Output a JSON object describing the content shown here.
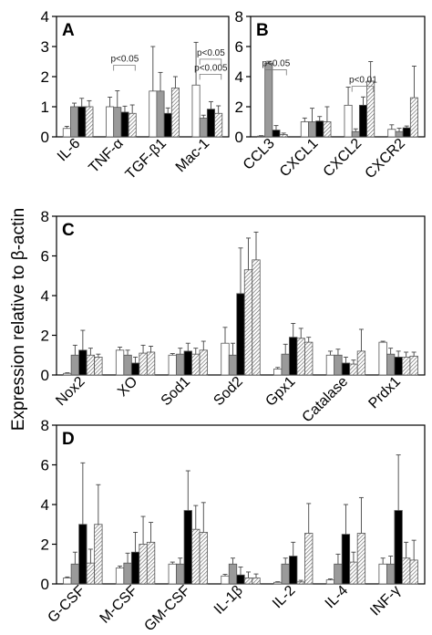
{
  "figure": {
    "ylabel": "Expression relative to β-actin"
  },
  "group_fills": [
    "#ffffff",
    "#9a9a9a",
    "#000000",
    "hatch"
  ],
  "chart_data": [
    {
      "id": "A",
      "type": "bar",
      "panel_label": "A",
      "ylim": [
        0,
        4
      ],
      "yticks": [
        0,
        1,
        2,
        3,
        4
      ],
      "categories": [
        "IL-6",
        "TNF-α",
        "TGF-β1",
        "Mac-1"
      ],
      "groups": [
        {
          "values": [
            0.28,
            1.0,
            1.52,
            1.72
          ],
          "errors": [
            0.07,
            0.32,
            1.48,
            1.42
          ]
        },
        {
          "values": [
            1.0,
            0.98,
            1.52,
            0.62
          ],
          "errors": [
            0.12,
            0.55,
            0.62,
            0.1
          ]
        },
        {
          "values": [
            1.0,
            0.82,
            0.78,
            0.92
          ],
          "errors": [
            0.28,
            0.2,
            0.18,
            0.25
          ]
        },
        {
          "values": [
            1.0,
            0.78,
            1.62,
            0.78
          ],
          "errors": [
            0.2,
            0.28,
            0.38,
            0.25
          ]
        }
      ],
      "annotations": [
        {
          "text": "p<0.05",
          "category": 1,
          "value": 2.5
        },
        {
          "text": "p<0.05",
          "category": 3,
          "value": 2.7
        },
        {
          "text": "p<0.005",
          "category": 3,
          "value": 2.2
        }
      ]
    },
    {
      "id": "B",
      "type": "bar",
      "panel_label": "B",
      "ylim": [
        0,
        8
      ],
      "yticks": [
        0,
        2,
        4,
        6,
        8
      ],
      "categories": [
        "CCL3",
        "CXCL1",
        "CXCL2",
        "CXCR2"
      ],
      "groups": [
        {
          "values": [
            0.05,
            1.0,
            2.1,
            0.5
          ],
          "errors": [
            0.03,
            0.25,
            1.2,
            0.3
          ]
        },
        {
          "values": [
            4.9,
            1.0,
            0.35,
            0.35
          ],
          "errors": [
            0.12,
            0.9,
            0.18,
            0.22
          ]
        },
        {
          "values": [
            0.45,
            1.05,
            2.1,
            0.6
          ],
          "errors": [
            0.3,
            0.3,
            0.55,
            0.12
          ]
        },
        {
          "values": [
            0.15,
            1.0,
            3.7,
            2.6
          ],
          "errors": [
            0.1,
            1.0,
            1.3,
            2.1
          ]
        }
      ],
      "annotations": [
        {
          "text": "p<0.05",
          "category": 0,
          "value": 4.7
        },
        {
          "text": "p<0.01",
          "category": 2,
          "value": 3.6
        }
      ]
    },
    {
      "id": "C",
      "type": "bar",
      "panel_label": "C",
      "ylim": [
        0,
        8
      ],
      "yticks": [
        0,
        2,
        4,
        6,
        8
      ],
      "categories": [
        "Nox2",
        "XO",
        "Sod1",
        "Sod2",
        "Gpx1",
        "Catalase",
        "Prdx1"
      ],
      "groups": [
        {
          "values": [
            0.08,
            1.25,
            1.0,
            1.6,
            0.3,
            1.0,
            1.65
          ],
          "errors": [
            0.03,
            0.15,
            0.08,
            0.8,
            0.08,
            0.2,
            0.05
          ]
        },
        {
          "values": [
            1.0,
            1.0,
            1.05,
            1.0,
            1.05,
            1.0,
            1.05
          ],
          "errors": [
            0.5,
            0.25,
            0.3,
            0.6,
            0.5,
            0.3,
            0.3
          ]
        },
        {
          "values": [
            1.25,
            0.6,
            1.2,
            4.1,
            1.9,
            0.6,
            0.9
          ],
          "errors": [
            1.0,
            0.3,
            0.4,
            2.3,
            0.7,
            0.3,
            0.3
          ]
        },
        {
          "values": [
            1.0,
            1.1,
            1.05,
            5.3,
            1.85,
            0.55,
            0.9
          ],
          "errors": [
            0.35,
            0.4,
            0.3,
            1.6,
            0.5,
            0.2,
            0.25
          ]
        },
        {
          "values": [
            0.9,
            1.15,
            1.25,
            5.8,
            1.65,
            1.2,
            0.95
          ],
          "errors": [
            0.15,
            0.3,
            0.45,
            1.4,
            0.25,
            1.1,
            0.2
          ]
        }
      ]
    },
    {
      "id": "D",
      "type": "bar",
      "panel_label": "D",
      "ylim": [
        0,
        8
      ],
      "yticks": [
        0,
        2,
        4,
        6,
        8
      ],
      "categories": [
        "G-CSF",
        "M-CSF",
        "GM-CSF",
        "IL-1β",
        "IL-2",
        "IL-4",
        "INF-γ"
      ],
      "groups": [
        {
          "values": [
            0.3,
            0.8,
            1.0,
            0.4,
            0.08,
            0.2,
            1.0
          ],
          "errors": [
            0.05,
            0.1,
            0.1,
            0.08,
            0.03,
            0.05,
            0.3
          ]
        },
        {
          "values": [
            1.0,
            1.05,
            1.0,
            1.0,
            1.0,
            1.0,
            1.0
          ],
          "errors": [
            0.6,
            0.5,
            0.3,
            0.3,
            0.3,
            0.5,
            0.4
          ]
        },
        {
          "values": [
            3.0,
            1.6,
            3.7,
            0.45,
            1.4,
            2.5,
            3.7
          ],
          "errors": [
            3.1,
            1.0,
            2.0,
            0.4,
            0.7,
            1.5,
            2.8
          ]
        },
        {
          "values": [
            1.05,
            2.0,
            2.75,
            0.3,
            0.1,
            1.1,
            1.3
          ],
          "errors": [
            0.7,
            1.4,
            1.2,
            0.3,
            0.08,
            0.5,
            0.8
          ]
        },
        {
          "values": [
            3.0,
            2.1,
            2.6,
            0.3,
            2.55,
            2.55,
            1.2
          ],
          "errors": [
            2.0,
            1.0,
            1.5,
            0.2,
            1.5,
            1.8,
            1.0
          ]
        }
      ]
    }
  ]
}
